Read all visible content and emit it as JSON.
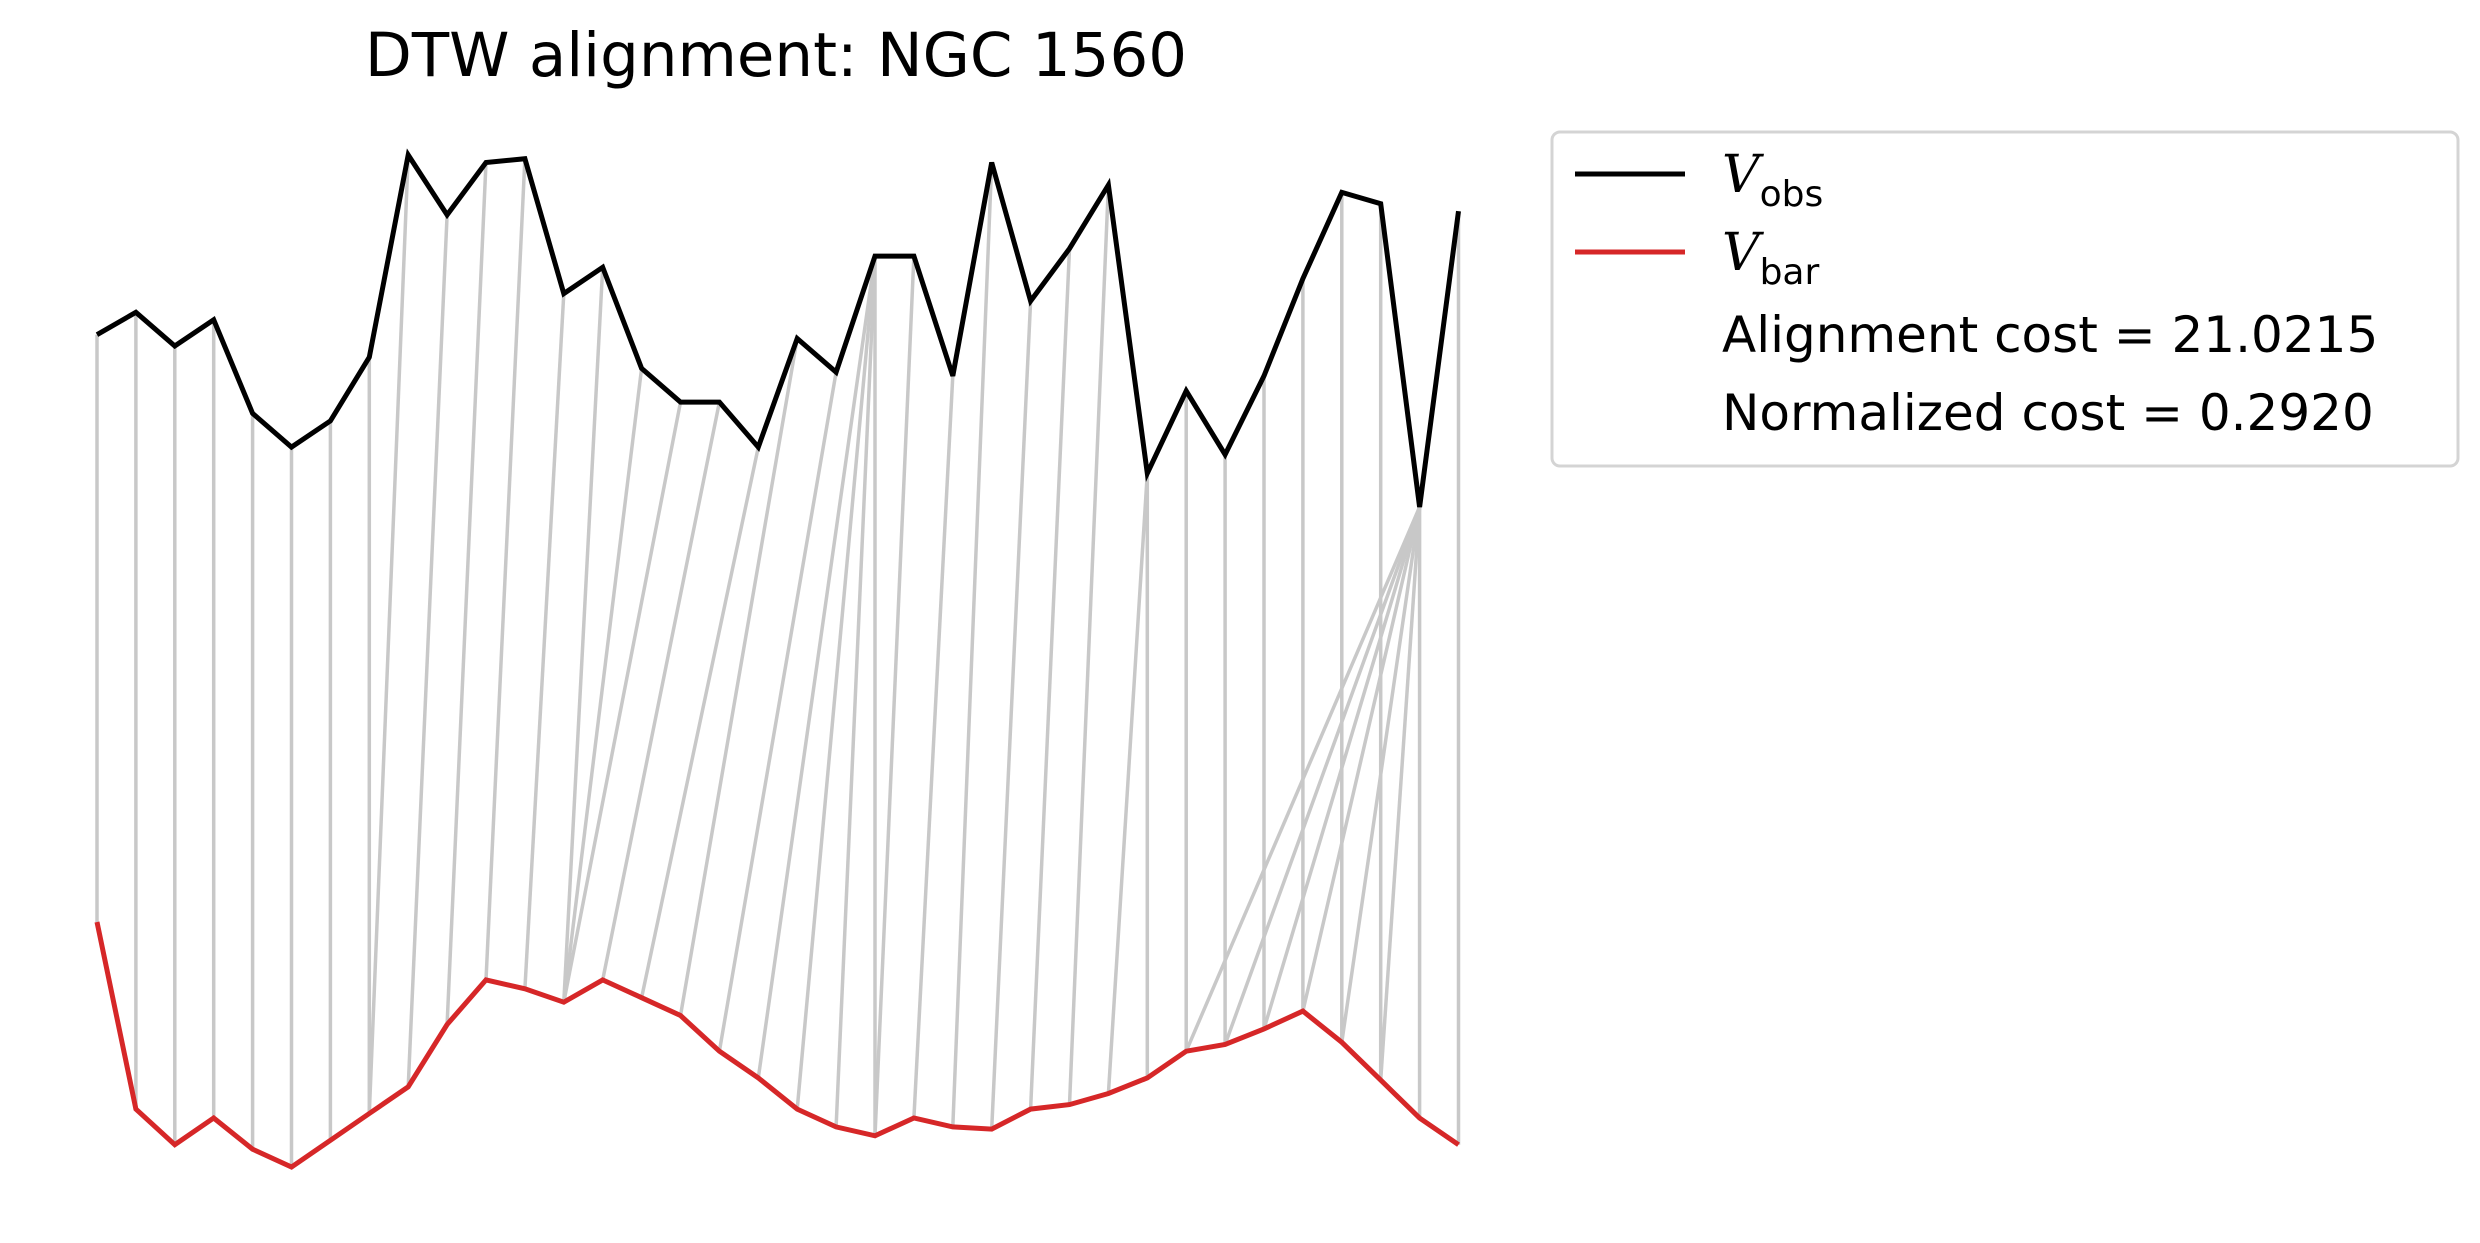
{
  "chart_data": {
    "type": "line",
    "title": "DTW alignment: NGC 1560",
    "xlabel": "",
    "ylabel": "",
    "axes_visible": false,
    "grid": false,
    "legend_position": "outside-upper-right",
    "series": [
      {
        "name": "V_obs",
        "label_main": "V",
        "label_sub": "obs",
        "color": "#000000",
        "values": [
          0.6,
          0.66,
          0.57,
          0.64,
          0.39,
          0.3,
          0.37,
          0.54,
          1.08,
          0.92,
          1.06,
          1.07,
          0.71,
          0.78,
          0.51,
          0.42,
          0.42,
          0.3,
          0.59,
          0.5,
          0.81,
          0.81,
          0.49,
          1.06,
          0.69,
          0.83,
          1.0,
          0.23,
          0.45,
          0.28,
          0.49,
          0.75,
          0.98,
          0.95,
          0.14,
          0.93
        ]
      },
      {
        "name": "V_bar",
        "label_main": "V",
        "label_sub": "bar",
        "color": "#d62728",
        "values": [
          0.6,
          0.18,
          0.1,
          0.16,
          0.09,
          0.05,
          0.11,
          0.17,
          0.23,
          0.37,
          0.47,
          0.45,
          0.42,
          0.47,
          0.43,
          0.39,
          0.31,
          0.25,
          0.18,
          0.14,
          0.12,
          0.16,
          0.14,
          0.135,
          0.18,
          0.19,
          0.215,
          0.25,
          0.31,
          0.325,
          0.36,
          0.4,
          0.33,
          0.245,
          0.16,
          0.1
        ]
      }
    ],
    "alignment_path": [
      [
        0,
        0
      ],
      [
        1,
        1
      ],
      [
        2,
        2
      ],
      [
        3,
        3
      ],
      [
        4,
        4
      ],
      [
        5,
        5
      ],
      [
        6,
        6
      ],
      [
        7,
        7
      ],
      [
        8,
        7
      ],
      [
        9,
        8
      ],
      [
        10,
        9
      ],
      [
        11,
        10
      ],
      [
        12,
        11
      ],
      [
        13,
        12
      ],
      [
        14,
        12
      ],
      [
        15,
        12
      ],
      [
        16,
        13
      ],
      [
        17,
        14
      ],
      [
        18,
        15
      ],
      [
        19,
        16
      ],
      [
        20,
        17
      ],
      [
        20,
        18
      ],
      [
        20,
        19
      ],
      [
        20,
        20
      ],
      [
        21,
        20
      ],
      [
        22,
        21
      ],
      [
        23,
        22
      ],
      [
        24,
        23
      ],
      [
        25,
        24
      ],
      [
        26,
        25
      ],
      [
        27,
        26
      ],
      [
        27,
        27
      ],
      [
        28,
        28
      ],
      [
        29,
        29
      ],
      [
        30,
        30
      ],
      [
        31,
        31
      ],
      [
        32,
        32
      ],
      [
        33,
        33
      ],
      [
        34,
        28
      ],
      [
        34,
        29
      ],
      [
        34,
        30
      ],
      [
        34,
        31
      ],
      [
        34,
        32
      ],
      [
        34,
        33
      ],
      [
        34,
        34
      ],
      [
        35,
        35
      ]
    ],
    "annotations": [
      "Alignment cost = 21.0215",
      "Normalized cost = 0.2920"
    ]
  },
  "colors": {
    "obs": "#000000",
    "bar": "#d62728",
    "connector": "#c8c8c8",
    "legend_border": "#d4d4d4"
  }
}
